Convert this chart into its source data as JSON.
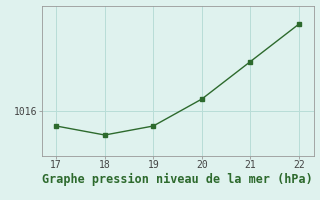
{
  "x": [
    17,
    18,
    19,
    20,
    21,
    22
  ],
  "y": [
    1015.0,
    1014.4,
    1015.0,
    1016.8,
    1019.3,
    1021.8
  ],
  "line_color": "#2d6a2d",
  "marker": "s",
  "marker_size": 2.5,
  "line_width": 1.0,
  "background_color": "#dff2ee",
  "grid_color": "#b8ddd7",
  "xlabel": "Graphe pression niveau de la mer (hPa)",
  "xlabel_color": "#2d6a2d",
  "xlabel_fontsize": 8.5,
  "ytick_label": "1016",
  "ytick_value": 1016,
  "xlim": [
    16.7,
    22.3
  ],
  "ylim": [
    1013.0,
    1023.0
  ],
  "xticks": [
    17,
    18,
    19,
    20,
    21,
    22
  ],
  "yticks": [
    1016
  ],
  "tick_color": "#444444",
  "axis_color": "#999999",
  "figsize": [
    3.2,
    2.0
  ],
  "dpi": 100
}
